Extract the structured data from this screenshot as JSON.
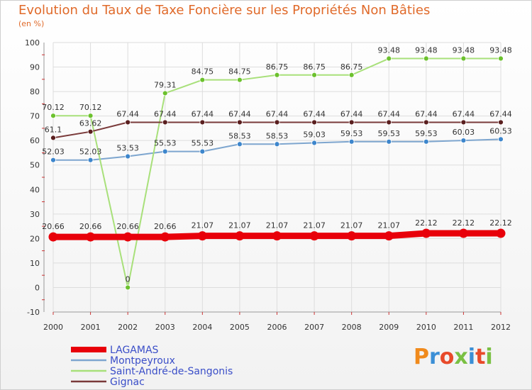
{
  "header": {
    "title": "Evolution du Taux de Taxe Foncière sur les Propriétés Non Bâties",
    "unit": "(en %)"
  },
  "logo": {
    "text": "Proxiti",
    "letter_colors": [
      "#f08a1c",
      "#3b8fd6",
      "#e84a2a",
      "#7ac043",
      "#3b8fd6",
      "#e84a2a",
      "#7ac043"
    ]
  },
  "chart_data": {
    "type": "line",
    "title": "Evolution du Taux de Taxe Foncière sur les Propriétés Non Bâties",
    "ylabel": "(en %)",
    "xlabel": "",
    "ylim": [
      -10,
      100
    ],
    "yticks": [
      -10,
      0,
      10,
      20,
      30,
      40,
      50,
      60,
      70,
      80,
      90,
      100
    ],
    "grid": true,
    "categories": [
      "2000",
      "2001",
      "2002",
      "2003",
      "2004",
      "2005",
      "2006",
      "2007",
      "2008",
      "2009",
      "2010",
      "2011",
      "2012"
    ],
    "legend_position": "bottom-left",
    "series": [
      {
        "name": "LAGAMAS",
        "color": "#e8000a",
        "marker_color": "#e8000a",
        "thick": true,
        "values": [
          20.66,
          20.66,
          20.66,
          20.66,
          21.07,
          21.07,
          21.07,
          21.07,
          21.07,
          21.07,
          22.12,
          22.12,
          22.12
        ],
        "labels": [
          "20.66",
          "20.66",
          "20.66",
          "20.66",
          "21.07",
          "21.07",
          "21.07",
          "21.07",
          "21.07",
          "21.07",
          "22.12",
          "22.12",
          "22.12"
        ]
      },
      {
        "name": "Montpeyroux",
        "color": "#7ea6cf",
        "marker_color": "#3d86cc",
        "thick": false,
        "values": [
          52.03,
          52.03,
          53.53,
          55.53,
          55.53,
          58.53,
          58.53,
          59.03,
          59.53,
          59.53,
          59.53,
          60.03,
          60.53
        ],
        "labels": [
          "52.03",
          "52.03",
          "53.53",
          "55.53",
          "55.53",
          "58.53",
          "58.53",
          "59.03",
          "59.53",
          "59.53",
          "59.53",
          "60.03",
          "60.53"
        ]
      },
      {
        "name": "Saint-André-de-Sangonis",
        "color": "#a8e07a",
        "marker_color": "#6cc12e",
        "thick": false,
        "values": [
          70.12,
          70.12,
          0,
          79.31,
          84.75,
          84.75,
          86.75,
          86.75,
          86.75,
          93.48,
          93.48,
          93.48,
          93.48
        ],
        "labels": [
          "70.12",
          "70.12",
          "0",
          "79.31",
          "84.75",
          "84.75",
          "86.75",
          "86.75",
          "86.75",
          "93.48",
          "93.48",
          "93.48",
          "93.48"
        ]
      },
      {
        "name": "Gignac",
        "color": "#7a3a3a",
        "marker_color": "#5a1f1f",
        "thick": false,
        "values": [
          61.1,
          63.62,
          67.44,
          67.44,
          67.44,
          67.44,
          67.44,
          67.44,
          67.44,
          67.44,
          67.44,
          67.44,
          67.44
        ],
        "labels": [
          "61.1",
          "63.62",
          "67.44",
          "67.44",
          "67.44",
          "67.44",
          "67.44",
          "67.44",
          "67.44",
          "67.44",
          "67.44",
          "67.44",
          "67.44"
        ]
      }
    ]
  },
  "colors": {
    "title": "#e06a2a",
    "legend_text": "#3a4ec8",
    "axis_text": "#333333",
    "grid": "#dddddd"
  }
}
